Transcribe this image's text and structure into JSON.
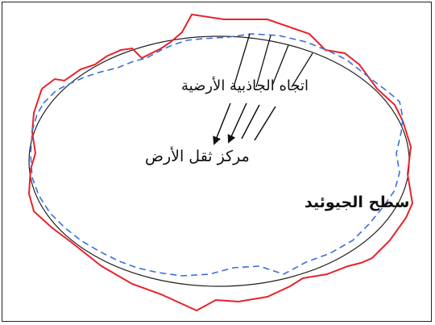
{
  "labels": {
    "gravity_direction": "اتجاه الجاذبية الأرضية",
    "earth_center_of_mass": "مركز ثقل الأرض",
    "geoid_surface": "سطح الجيوئيد"
  },
  "colors": {
    "ellipse": "#222222",
    "geoid": "#e8222a",
    "dashed_surface": "#3a6fd8",
    "frame": "#222222"
  }
}
